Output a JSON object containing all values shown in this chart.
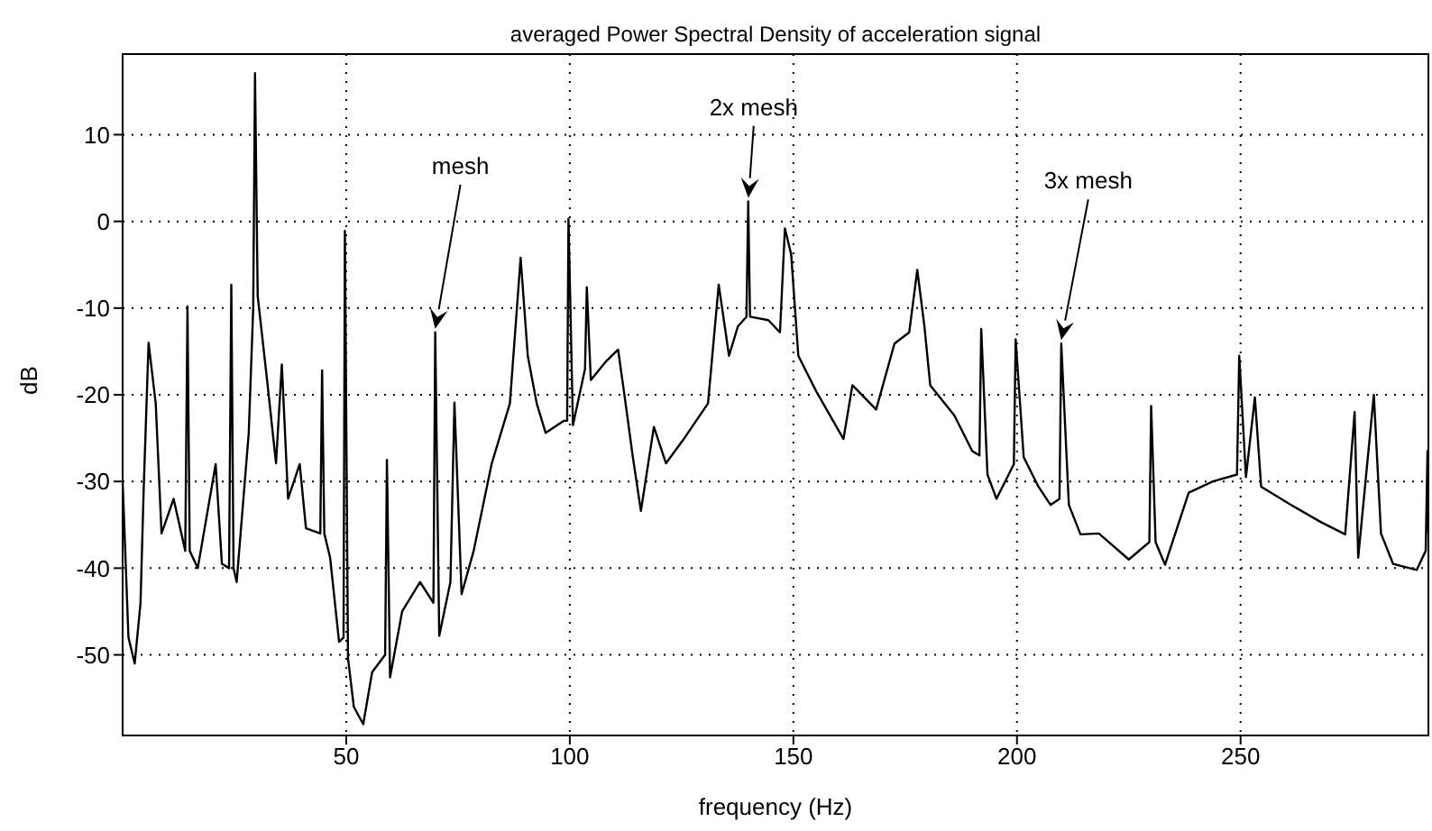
{
  "chart_data": {
    "type": "line",
    "title": "averaged Power Spectral Density of acceleration signal",
    "xlabel": "frequency (Hz)",
    "ylabel": "dB",
    "xlim": [
      0,
      292
    ],
    "ylim": [
      -59.3,
      19.3
    ],
    "xticks": [
      50,
      100,
      150,
      200,
      250
    ],
    "yticks": [
      -50,
      -40,
      -30,
      -20,
      -10,
      0,
      10
    ],
    "grid": true,
    "marker": "none",
    "line_style": "solid",
    "annotations": [
      "mesh",
      "2x mesh",
      "3x mesh"
    ],
    "x": [
      0,
      1.3,
      2.7,
      4.0,
      4.7,
      5.8,
      7.4,
      8.7,
      11.4,
      14.0,
      14.5,
      15.0,
      16.8,
      20.8,
      22.2,
      23.8,
      24.3,
      24.8,
      25.5,
      28.2,
      29.2,
      29.6,
      30.2,
      32.3,
      34.3,
      35.6,
      37,
      39.6,
      41,
      44.2,
      44.6,
      45.1,
      46.4,
      48.4,
      49.4,
      49.7,
      50.4,
      51.7,
      53.8,
      55.8,
      58.7,
      59.1,
      59.8,
      62.5,
      66.5,
      69.5,
      69.9,
      70.8,
      73.3,
      74.2,
      75.8,
      78.5,
      82.5,
      86.6,
      89,
      90.6,
      92.6,
      94.6,
      98.7,
      99.4,
      99.7,
      100.7,
      103.4,
      103.8,
      104.7,
      108,
      110.8,
      112.1,
      114.1,
      115.9,
      118.8,
      121.5,
      125.5,
      130.9,
      133.3,
      135.6,
      137.6,
      139.5,
      139.9,
      140.3,
      144.4,
      147,
      148.1,
      149.5,
      151.1,
      155.1,
      161.2,
      163.2,
      168.5,
      172.6,
      175.9,
      177.7,
      179.3,
      180.6,
      186,
      190,
      191.6,
      192,
      193.4,
      195.4,
      199.3,
      199.7,
      201.5,
      204.8,
      207.5,
      209.5,
      209.9,
      211.6,
      214.2,
      218.3,
      225,
      229.6,
      230,
      231,
      233.1,
      238.4,
      243.8,
      249.2,
      249.7,
      251.2,
      253.2,
      254.6,
      261.3,
      268,
      273.4,
      275.5,
      276.3,
      279.8,
      281.4,
      284.1,
      289.4,
      291.4,
      291.8,
      292
    ],
    "series": [
      {
        "color": "#000000",
        "values": [
          -30,
          -48,
          -51,
          -44,
          -31,
          -14,
          -21,
          -36,
          -32,
          -38,
          -9.8,
          -38,
          -40,
          -28,
          -39.5,
          -40,
          -7.3,
          -40,
          -41.6,
          -24.4,
          -10,
          17.1,
          -8.6,
          -18.3,
          -27.9,
          -16.5,
          -32,
          -28,
          -35.4,
          -36,
          -17.2,
          -36,
          -38.8,
          -48.5,
          -48,
          -1.1,
          -50.4,
          -56,
          -58,
          -52,
          -50,
          -27.5,
          -52.6,
          -45,
          -41.6,
          -44,
          -12.8,
          -47.8,
          -41.6,
          -20.9,
          -43,
          -38,
          -28,
          -21,
          -4.2,
          -15.5,
          -21,
          -24.4,
          -23,
          -23,
          0.3,
          -23.5,
          -17,
          -7.6,
          -18.3,
          -16.2,
          -14.8,
          -19.6,
          -27.2,
          -33.4,
          -23.7,
          -27.9,
          -25.1,
          -21,
          -7.3,
          -15.5,
          -12.1,
          -11,
          2.3,
          -11,
          -11.4,
          -12.8,
          -0.8,
          -3.8,
          -15.5,
          -19.6,
          -25.1,
          -18.9,
          -21.7,
          -14.1,
          -12.8,
          -5.6,
          -12.1,
          -18.9,
          -22.4,
          -26.5,
          -27,
          -12.4,
          -29.2,
          -32,
          -28,
          -13.6,
          -27.2,
          -30.6,
          -32.7,
          -32,
          -14.1,
          -32.7,
          -36.1,
          -36,
          -39,
          -37,
          -21.3,
          -37,
          -39.6,
          -31.3,
          -30,
          -29.2,
          -15.5,
          -29.5,
          -20.3,
          -30.6,
          -32.7,
          -34.7,
          -36.1,
          -22,
          -38.8,
          -20,
          -36,
          -39.5,
          -40.2,
          -38,
          -26.5,
          -36
        ]
      }
    ]
  }
}
